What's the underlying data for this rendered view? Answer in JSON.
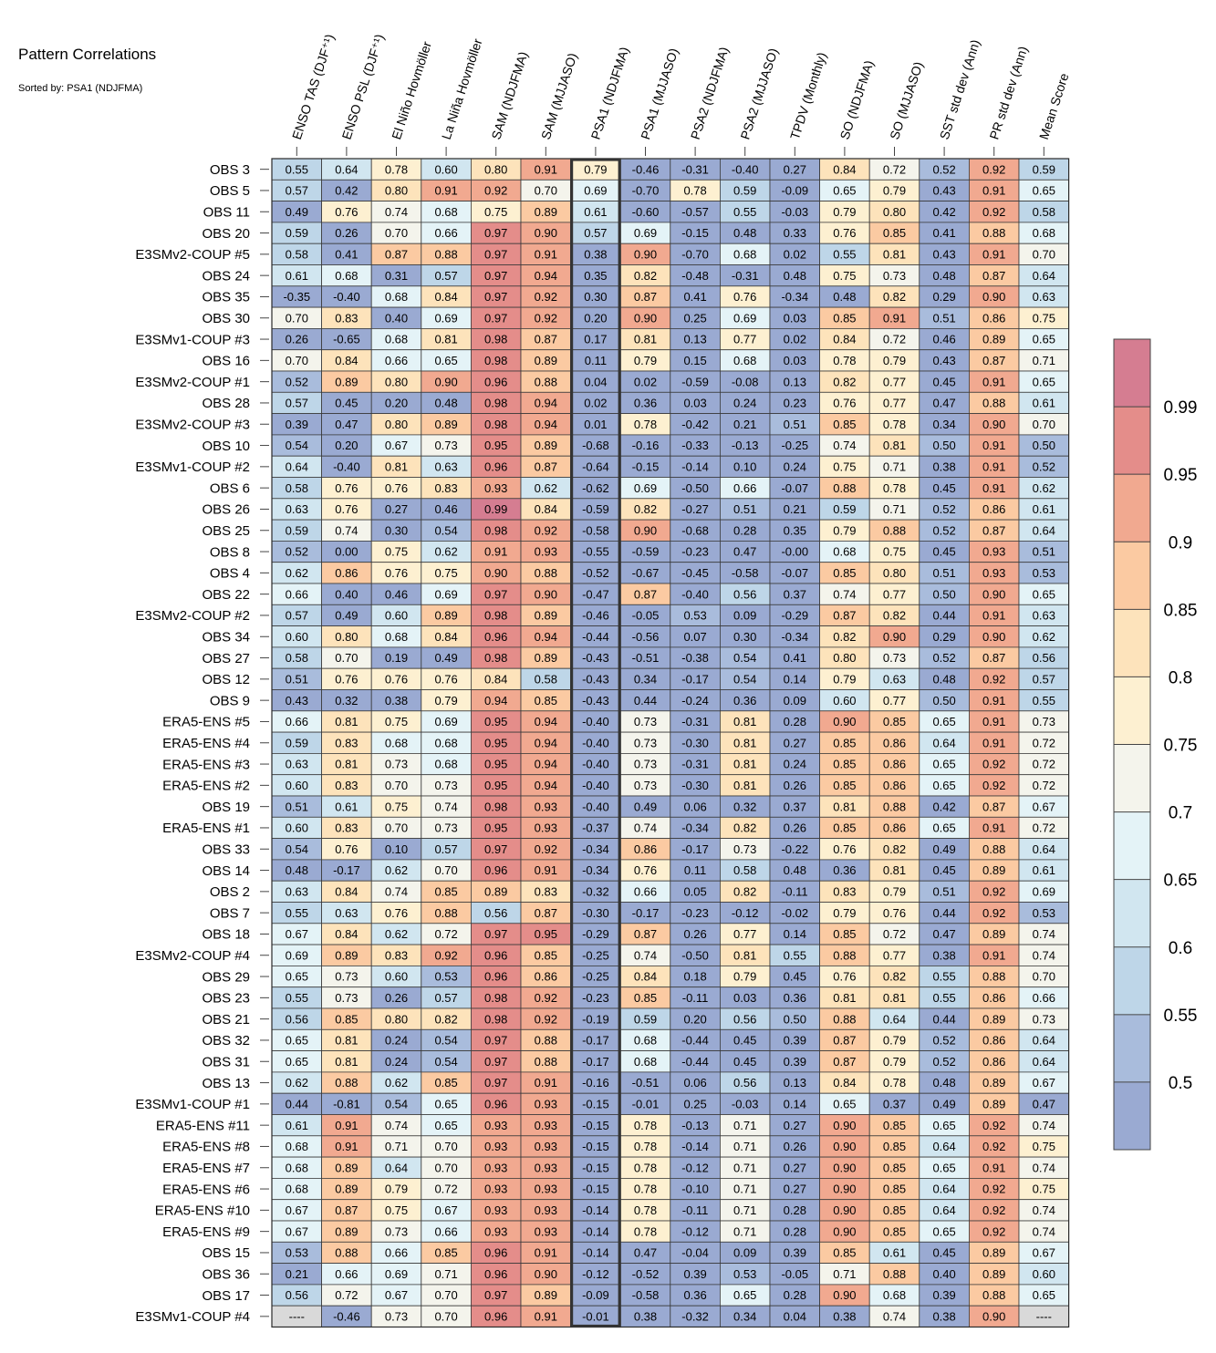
{
  "title": "Pattern Correlations",
  "subtitle": "Sorted by: PSA1 (NDJFMA)",
  "chart_data": {
    "type": "heatmap",
    "columns": [
      "ENSO TAS (DJF⁺¹)",
      "ENSO PSL (DJF⁺¹)",
      "El Niño Hovmöller",
      "La Niña Hovmöller",
      "SAM (NDJFMA)",
      "SAM (MJJASO)",
      "PSA1 (NDJFMA)",
      "PSA1 (MJJASO)",
      "PSA2 (NDJFMA)",
      "PSA2 (MJJASO)",
      "TPDV (Monthly)",
      "SO (NDJFMA)",
      "SO (MJJASO)",
      "SST std dev (Ann)",
      "PR std dev (Ann)",
      "Mean Score"
    ],
    "highlight_column": 6,
    "missing_text": "----",
    "rows": [
      {
        "label": "OBS 3",
        "values": [
          0.55,
          0.64,
          0.78,
          0.6,
          0.8,
          0.91,
          0.79,
          -0.46,
          -0.31,
          -0.4,
          0.27,
          0.84,
          0.72,
          0.52,
          0.92,
          0.59
        ]
      },
      {
        "label": "OBS 5",
        "values": [
          0.57,
          0.42,
          0.8,
          0.91,
          0.92,
          0.7,
          0.69,
          -0.7,
          0.78,
          0.59,
          -0.09,
          0.65,
          0.79,
          0.43,
          0.91,
          0.65
        ]
      },
      {
        "label": "OBS 11",
        "values": [
          0.49,
          0.76,
          0.74,
          0.68,
          0.75,
          0.89,
          0.61,
          -0.6,
          -0.57,
          0.55,
          -0.03,
          0.79,
          0.8,
          0.42,
          0.92,
          0.58
        ]
      },
      {
        "label": "OBS 20",
        "values": [
          0.59,
          0.26,
          0.7,
          0.66,
          0.97,
          0.9,
          0.57,
          0.69,
          -0.15,
          0.48,
          0.33,
          0.76,
          0.85,
          0.41,
          0.88,
          0.68
        ]
      },
      {
        "label": "E3SMv2-COUP #5",
        "values": [
          0.58,
          0.41,
          0.87,
          0.88,
          0.97,
          0.91,
          0.38,
          0.9,
          -0.7,
          0.68,
          0.02,
          0.55,
          0.81,
          0.43,
          0.91,
          0.7
        ]
      },
      {
        "label": "OBS 24",
        "values": [
          0.61,
          0.68,
          0.31,
          0.57,
          0.97,
          0.94,
          0.35,
          0.82,
          -0.48,
          -0.31,
          0.48,
          0.75,
          0.73,
          0.48,
          0.87,
          0.64
        ]
      },
      {
        "label": "OBS 35",
        "values": [
          -0.35,
          -0.4,
          0.68,
          0.84,
          0.97,
          0.92,
          0.3,
          0.87,
          0.41,
          0.76,
          -0.34,
          0.48,
          0.82,
          0.29,
          0.9,
          0.63
        ]
      },
      {
        "label": "OBS 30",
        "values": [
          0.7,
          0.83,
          0.4,
          0.69,
          0.97,
          0.92,
          0.2,
          0.9,
          0.25,
          0.69,
          0.03,
          0.85,
          0.91,
          0.51,
          0.86,
          0.75
        ]
      },
      {
        "label": "E3SMv1-COUP #3",
        "values": [
          0.26,
          -0.65,
          0.68,
          0.81,
          0.98,
          0.87,
          0.17,
          0.81,
          0.13,
          0.77,
          0.02,
          0.84,
          0.72,
          0.46,
          0.89,
          0.65
        ]
      },
      {
        "label": "OBS 16",
        "values": [
          0.7,
          0.84,
          0.66,
          0.65,
          0.98,
          0.89,
          0.11,
          0.79,
          0.15,
          0.68,
          0.03,
          0.78,
          0.79,
          0.43,
          0.87,
          0.71
        ]
      },
      {
        "label": "E3SMv2-COUP #1",
        "values": [
          0.52,
          0.89,
          0.8,
          0.9,
          0.96,
          0.88,
          0.04,
          0.02,
          -0.59,
          -0.08,
          0.13,
          0.82,
          0.77,
          0.45,
          0.91,
          0.65
        ]
      },
      {
        "label": "OBS 28",
        "values": [
          0.57,
          0.45,
          0.2,
          0.48,
          0.98,
          0.94,
          0.02,
          0.36,
          0.03,
          0.24,
          0.23,
          0.76,
          0.77,
          0.47,
          0.88,
          0.61
        ]
      },
      {
        "label": "E3SMv2-COUP #3",
        "values": [
          0.39,
          0.47,
          0.8,
          0.89,
          0.98,
          0.94,
          0.01,
          0.78,
          -0.42,
          0.21,
          0.51,
          0.85,
          0.78,
          0.34,
          0.9,
          0.7
        ]
      },
      {
        "label": "OBS 10",
        "values": [
          0.54,
          0.2,
          0.67,
          0.73,
          0.95,
          0.89,
          -0.68,
          -0.16,
          -0.33,
          -0.13,
          -0.25,
          0.74,
          0.81,
          0.5,
          0.91,
          0.5
        ]
      },
      {
        "label": "E3SMv1-COUP #2",
        "values": [
          0.64,
          -0.4,
          0.81,
          0.63,
          0.96,
          0.87,
          -0.64,
          -0.15,
          -0.14,
          0.1,
          0.24,
          0.75,
          0.71,
          0.38,
          0.91,
          0.52
        ]
      },
      {
        "label": "OBS 6",
        "values": [
          0.58,
          0.76,
          0.76,
          0.83,
          0.93,
          0.62,
          -0.62,
          0.69,
          -0.5,
          0.66,
          -0.07,
          0.88,
          0.78,
          0.45,
          0.91,
          0.62
        ]
      },
      {
        "label": "OBS 26",
        "values": [
          0.63,
          0.76,
          0.27,
          0.46,
          0.99,
          0.84,
          -0.59,
          0.82,
          -0.27,
          0.51,
          0.21,
          0.59,
          0.71,
          0.52,
          0.86,
          0.61
        ]
      },
      {
        "label": "OBS 25",
        "values": [
          0.59,
          0.74,
          0.3,
          0.54,
          0.98,
          0.92,
          -0.58,
          0.9,
          -0.68,
          0.28,
          0.35,
          0.79,
          0.88,
          0.52,
          0.87,
          0.64
        ]
      },
      {
        "label": "OBS 8",
        "values": [
          0.52,
          0.0,
          0.75,
          0.62,
          0.91,
          0.93,
          -0.55,
          -0.59,
          -0.23,
          0.47,
          -0.0,
          0.68,
          0.75,
          0.45,
          0.93,
          0.51
        ]
      },
      {
        "label": "OBS 4",
        "values": [
          0.62,
          0.86,
          0.76,
          0.75,
          0.9,
          0.88,
          -0.52,
          -0.67,
          -0.45,
          -0.58,
          -0.07,
          0.85,
          0.8,
          0.51,
          0.93,
          0.53
        ]
      },
      {
        "label": "OBS 22",
        "values": [
          0.66,
          0.4,
          0.46,
          0.69,
          0.97,
          0.9,
          -0.47,
          0.87,
          -0.4,
          0.56,
          0.37,
          0.74,
          0.77,
          0.5,
          0.9,
          0.65
        ]
      },
      {
        "label": "E3SMv2-COUP #2",
        "values": [
          0.57,
          0.49,
          0.6,
          0.89,
          0.98,
          0.89,
          -0.46,
          -0.05,
          0.53,
          0.09,
          -0.29,
          0.87,
          0.82,
          0.44,
          0.91,
          0.63
        ]
      },
      {
        "label": "OBS 34",
        "values": [
          0.6,
          0.8,
          0.68,
          0.84,
          0.96,
          0.94,
          -0.44,
          -0.56,
          0.07,
          0.3,
          -0.34,
          0.82,
          0.9,
          0.29,
          0.9,
          0.62
        ]
      },
      {
        "label": "OBS 27",
        "values": [
          0.58,
          0.7,
          0.19,
          0.49,
          0.98,
          0.89,
          -0.43,
          -0.51,
          -0.38,
          0.54,
          0.41,
          0.8,
          0.73,
          0.52,
          0.87,
          0.56
        ]
      },
      {
        "label": "OBS 12",
        "values": [
          0.51,
          0.76,
          0.76,
          0.76,
          0.84,
          0.58,
          -0.43,
          0.34,
          -0.17,
          0.54,
          0.14,
          0.79,
          0.63,
          0.48,
          0.92,
          0.57
        ]
      },
      {
        "label": "OBS 9",
        "values": [
          0.43,
          0.32,
          0.38,
          0.79,
          0.94,
          0.85,
          -0.43,
          0.44,
          -0.24,
          0.36,
          0.09,
          0.6,
          0.77,
          0.5,
          0.91,
          0.55
        ]
      },
      {
        "label": "ERA5-ENS    #5",
        "values": [
          0.66,
          0.81,
          0.75,
          0.69,
          0.95,
          0.94,
          -0.4,
          0.73,
          -0.31,
          0.81,
          0.28,
          0.9,
          0.85,
          0.65,
          0.91,
          0.73
        ]
      },
      {
        "label": "ERA5-ENS    #4",
        "values": [
          0.59,
          0.83,
          0.68,
          0.68,
          0.95,
          0.94,
          -0.4,
          0.73,
          -0.3,
          0.81,
          0.27,
          0.85,
          0.86,
          0.64,
          0.91,
          0.72
        ]
      },
      {
        "label": "ERA5-ENS    #3",
        "values": [
          0.63,
          0.81,
          0.73,
          0.68,
          0.95,
          0.94,
          -0.4,
          0.73,
          -0.31,
          0.81,
          0.24,
          0.85,
          0.86,
          0.65,
          0.92,
          0.72
        ]
      },
      {
        "label": "ERA5-ENS    #2",
        "values": [
          0.6,
          0.83,
          0.7,
          0.73,
          0.95,
          0.94,
          -0.4,
          0.73,
          -0.3,
          0.81,
          0.26,
          0.85,
          0.86,
          0.65,
          0.92,
          0.72
        ]
      },
      {
        "label": "OBS 19",
        "values": [
          0.51,
          0.61,
          0.75,
          0.74,
          0.98,
          0.93,
          -0.4,
          0.49,
          0.06,
          0.32,
          0.37,
          0.81,
          0.88,
          0.42,
          0.87,
          0.67
        ]
      },
      {
        "label": "ERA5-ENS    #1",
        "values": [
          0.6,
          0.83,
          0.7,
          0.73,
          0.95,
          0.93,
          -0.37,
          0.74,
          -0.34,
          0.82,
          0.26,
          0.85,
          0.86,
          0.65,
          0.91,
          0.72
        ]
      },
      {
        "label": "OBS 33",
        "values": [
          0.54,
          0.76,
          0.1,
          0.57,
          0.97,
          0.92,
          -0.34,
          0.86,
          -0.17,
          0.73,
          -0.22,
          0.76,
          0.82,
          0.49,
          0.88,
          0.64
        ]
      },
      {
        "label": "OBS 14",
        "values": [
          0.48,
          -0.17,
          0.62,
          0.7,
          0.96,
          0.91,
          -0.34,
          0.76,
          0.11,
          0.58,
          0.48,
          0.36,
          0.81,
          0.45,
          0.89,
          0.61
        ]
      },
      {
        "label": "OBS 2",
        "values": [
          0.63,
          0.84,
          0.74,
          0.85,
          0.89,
          0.83,
          -0.32,
          0.66,
          0.05,
          0.82,
          -0.11,
          0.83,
          0.79,
          0.51,
          0.92,
          0.69
        ]
      },
      {
        "label": "OBS 7",
        "values": [
          0.55,
          0.63,
          0.76,
          0.88,
          0.56,
          0.87,
          -0.3,
          -0.17,
          -0.23,
          -0.12,
          -0.02,
          0.79,
          0.76,
          0.44,
          0.92,
          0.53
        ]
      },
      {
        "label": "OBS 18",
        "values": [
          0.67,
          0.84,
          0.62,
          0.72,
          0.97,
          0.95,
          -0.29,
          0.87,
          0.26,
          0.77,
          0.14,
          0.85,
          0.72,
          0.47,
          0.89,
          0.74
        ]
      },
      {
        "label": "E3SMv2-COUP #4",
        "values": [
          0.69,
          0.89,
          0.83,
          0.92,
          0.96,
          0.85,
          -0.25,
          0.74,
          -0.5,
          0.81,
          0.55,
          0.88,
          0.77,
          0.38,
          0.91,
          0.74
        ]
      },
      {
        "label": "OBS 29",
        "values": [
          0.65,
          0.73,
          0.6,
          0.53,
          0.96,
          0.86,
          -0.25,
          0.84,
          0.18,
          0.79,
          0.45,
          0.76,
          0.82,
          0.55,
          0.88,
          0.7
        ]
      },
      {
        "label": "OBS 23",
        "values": [
          0.55,
          0.73,
          0.26,
          0.57,
          0.98,
          0.92,
          -0.23,
          0.85,
          -0.11,
          0.03,
          0.36,
          0.81,
          0.81,
          0.55,
          0.86,
          0.66
        ]
      },
      {
        "label": "OBS 21",
        "values": [
          0.56,
          0.85,
          0.8,
          0.82,
          0.98,
          0.92,
          -0.19,
          0.59,
          0.2,
          0.56,
          0.5,
          0.88,
          0.64,
          0.44,
          0.89,
          0.73
        ]
      },
      {
        "label": "OBS 32",
        "values": [
          0.65,
          0.81,
          0.24,
          0.54,
          0.97,
          0.88,
          -0.17,
          0.68,
          -0.44,
          0.45,
          0.39,
          0.87,
          0.79,
          0.52,
          0.86,
          0.64
        ]
      },
      {
        "label": "OBS 31",
        "values": [
          0.65,
          0.81,
          0.24,
          0.54,
          0.97,
          0.88,
          -0.17,
          0.68,
          -0.44,
          0.45,
          0.39,
          0.87,
          0.79,
          0.52,
          0.86,
          0.64
        ]
      },
      {
        "label": "OBS 13",
        "values": [
          0.62,
          0.88,
          0.62,
          0.85,
          0.97,
          0.91,
          -0.16,
          -0.51,
          0.06,
          0.56,
          0.13,
          0.84,
          0.78,
          0.48,
          0.89,
          0.67
        ]
      },
      {
        "label": "E3SMv1-COUP #1",
        "values": [
          0.44,
          -0.81,
          0.54,
          0.65,
          0.96,
          0.93,
          -0.15,
          -0.01,
          0.25,
          -0.03,
          0.14,
          0.65,
          0.37,
          0.49,
          0.89,
          0.47
        ]
      },
      {
        "label": "ERA5-ENS    #11",
        "values": [
          0.61,
          0.91,
          0.74,
          0.65,
          0.93,
          0.93,
          -0.15,
          0.78,
          -0.13,
          0.71,
          0.27,
          0.9,
          0.85,
          0.65,
          0.92,
          0.74
        ]
      },
      {
        "label": "ERA5-ENS    #8",
        "values": [
          0.68,
          0.91,
          0.71,
          0.7,
          0.93,
          0.93,
          -0.15,
          0.78,
          -0.14,
          0.71,
          0.26,
          0.9,
          0.85,
          0.64,
          0.92,
          0.75
        ]
      },
      {
        "label": "ERA5-ENS    #7",
        "values": [
          0.68,
          0.89,
          0.64,
          0.7,
          0.93,
          0.93,
          -0.15,
          0.78,
          -0.12,
          0.71,
          0.27,
          0.9,
          0.85,
          0.65,
          0.91,
          0.74
        ]
      },
      {
        "label": "ERA5-ENS    #6",
        "values": [
          0.68,
          0.89,
          0.79,
          0.72,
          0.93,
          0.93,
          -0.15,
          0.78,
          -0.1,
          0.71,
          0.27,
          0.9,
          0.85,
          0.64,
          0.92,
          0.75
        ]
      },
      {
        "label": "ERA5-ENS    #10",
        "values": [
          0.67,
          0.87,
          0.75,
          0.67,
          0.93,
          0.93,
          -0.14,
          0.78,
          -0.11,
          0.71,
          0.28,
          0.9,
          0.85,
          0.64,
          0.92,
          0.74
        ]
      },
      {
        "label": "ERA5-ENS    #9",
        "values": [
          0.67,
          0.89,
          0.73,
          0.66,
          0.93,
          0.93,
          -0.14,
          0.78,
          -0.12,
          0.71,
          0.28,
          0.9,
          0.85,
          0.65,
          0.92,
          0.74
        ]
      },
      {
        "label": "OBS 15",
        "values": [
          0.53,
          0.88,
          0.66,
          0.85,
          0.96,
          0.91,
          -0.14,
          0.47,
          -0.04,
          0.09,
          0.39,
          0.85,
          0.61,
          0.45,
          0.89,
          0.67
        ]
      },
      {
        "label": "OBS 36",
        "values": [
          0.21,
          0.66,
          0.69,
          0.71,
          0.96,
          0.9,
          -0.12,
          -0.52,
          0.39,
          0.53,
          -0.05,
          0.71,
          0.88,
          0.4,
          0.89,
          0.6
        ]
      },
      {
        "label": "OBS 17",
        "values": [
          0.56,
          0.72,
          0.67,
          0.7,
          0.97,
          0.89,
          -0.09,
          -0.58,
          0.36,
          0.65,
          0.28,
          0.9,
          0.68,
          0.39,
          0.88,
          0.65
        ]
      },
      {
        "label": "E3SMv1-COUP #4",
        "values": [
          null,
          -0.46,
          0.73,
          0.7,
          0.96,
          0.91,
          -0.01,
          0.38,
          -0.32,
          0.34,
          0.04,
          0.38,
          0.74,
          0.38,
          0.9,
          null
        ]
      }
    ],
    "colorbar": {
      "ticks": [
        0.5,
        0.55,
        0.6,
        0.65,
        0.7,
        0.75,
        0.8,
        0.85,
        0.9,
        0.95,
        0.99
      ],
      "tick_labels": [
        "0.5",
        "0.55",
        "0.6",
        "0.65",
        "0.7",
        "0.75",
        "0.8",
        "0.85",
        "0.9",
        "0.95",
        "0.99"
      ],
      "bin_colors": [
        "#9aaad2",
        "#a9bcdc",
        "#bed6e8",
        "#d1e6f0",
        "#e4f3f7",
        "#f4f4ec",
        "#fdf0d1",
        "#fde3bb",
        "#fbcaa2",
        "#f1a990",
        "#e48d8a",
        "#d57d91"
      ],
      "missing_color": "#d9d9d9"
    }
  }
}
